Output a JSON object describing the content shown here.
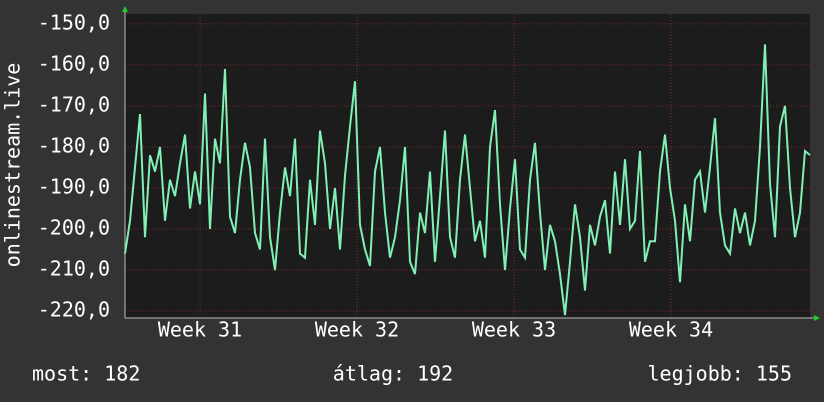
{
  "chart_data": {
    "type": "line",
    "ylabel": "onlinestream.live",
    "xlim": [
      0,
      137
    ],
    "xticks": [
      {
        "value": 15,
        "label": "Week 31"
      },
      {
        "value": 46.4,
        "label": "Week 32"
      },
      {
        "value": 77.8,
        "label": "Week 33"
      },
      {
        "value": 109.2,
        "label": "Week 34"
      }
    ],
    "ylim": [
      -221.7,
      -147.6
    ],
    "yticks": [
      {
        "value": -150,
        "label": "-150,0"
      },
      {
        "value": -160,
        "label": "-160,0"
      },
      {
        "value": -170,
        "label": "-170,0"
      },
      {
        "value": -180,
        "label": "-180,0"
      },
      {
        "value": -190,
        "label": "-190,0"
      },
      {
        "value": -200,
        "label": "-200,0"
      },
      {
        "value": -210,
        "label": "-210,0"
      },
      {
        "value": -220,
        "label": "-220,0"
      }
    ],
    "grid": true,
    "color": "#80f0b4",
    "values": [
      -206,
      -198,
      -185,
      -172,
      -202,
      -182,
      -186,
      -180,
      -198,
      -188,
      -192,
      -184,
      -177,
      -195,
      -186,
      -194,
      -167,
      -200,
      -178,
      -184,
      -161,
      -197,
      -201,
      -188,
      -179,
      -185,
      -201,
      -205,
      -178,
      -202,
      -210,
      -196,
      -185,
      -192,
      -178,
      -206,
      -207,
      -188,
      -199,
      -176,
      -184,
      -200,
      -190,
      -205,
      -187,
      -175,
      -164,
      -199,
      -205,
      -209,
      -186,
      -180,
      -196,
      -207,
      -202,
      -193,
      -180,
      -208,
      -211,
      -196,
      -201,
      -186,
      -208,
      -192,
      -176,
      -202,
      -207,
      -188,
      -177,
      -190,
      -203,
      -198,
      -207,
      -180,
      -171,
      -194,
      -210,
      -195,
      -183,
      -205,
      -207,
      -188,
      -179,
      -196,
      -210,
      -199,
      -203,
      -211,
      -221,
      -208,
      -194,
      -202,
      -215,
      -199,
      -204,
      -197,
      -193,
      -206,
      -186,
      -199,
      -183,
      -200,
      -198,
      -181,
      -208,
      -203,
      -203,
      -186,
      -177,
      -190,
      -198,
      -213,
      -194,
      -203,
      -188,
      -186,
      -196,
      -185,
      -173,
      -196,
      -204,
      -206,
      -195,
      -201,
      -196,
      -204,
      -198,
      -180,
      -155,
      -189,
      -202,
      -175,
      -170,
      -190,
      -202,
      -196,
      -181,
      -182
    ],
    "stats": [
      "most: 182",
      "átlag: 192",
      "legjobb: 155"
    ]
  }
}
